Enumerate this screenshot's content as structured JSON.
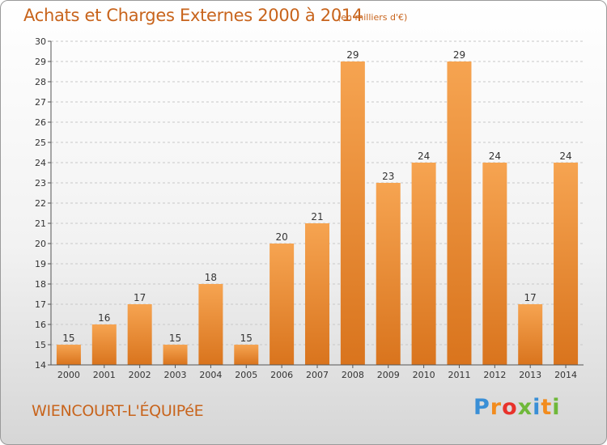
{
  "header": {
    "title": "Achats et Charges Externes 2000 à 2014",
    "subtitle": "(en milliers d'€)"
  },
  "footer": {
    "commune": "WIENCOURT-L'ÉQUIPéE",
    "logo": "Proxiti",
    "logo_colors": [
      "#3a8fd6",
      "#f28c1e",
      "#e8322b",
      "#6fb83a",
      "#3a8fd6",
      "#f28c1e",
      "#6fb83a"
    ]
  },
  "colors": {
    "bar_top": "#f6a451",
    "bar_bottom": "#d9741d",
    "grid": "#c8c8c8",
    "axis": "#555555",
    "accent_text": "#c8641c"
  },
  "chart_data": {
    "type": "bar",
    "title": "Achats et Charges Externes 2000 à 2014",
    "subtitle": "(en milliers d'€)",
    "categories": [
      "2000",
      "2001",
      "2002",
      "2003",
      "2004",
      "2005",
      "2006",
      "2007",
      "2008",
      "2009",
      "2010",
      "2011",
      "2012",
      "2013",
      "2014"
    ],
    "values": [
      15,
      16,
      17,
      15,
      18,
      15,
      20,
      21,
      29,
      23,
      24,
      29,
      24,
      17,
      24
    ],
    "ylim": [
      14,
      30
    ],
    "yticks": [
      14,
      15,
      16,
      17,
      18,
      19,
      20,
      21,
      22,
      23,
      24,
      25,
      26,
      27,
      28,
      29,
      30
    ],
    "grid": "horizontal dashed",
    "legend": "none",
    "data_labels": true
  }
}
